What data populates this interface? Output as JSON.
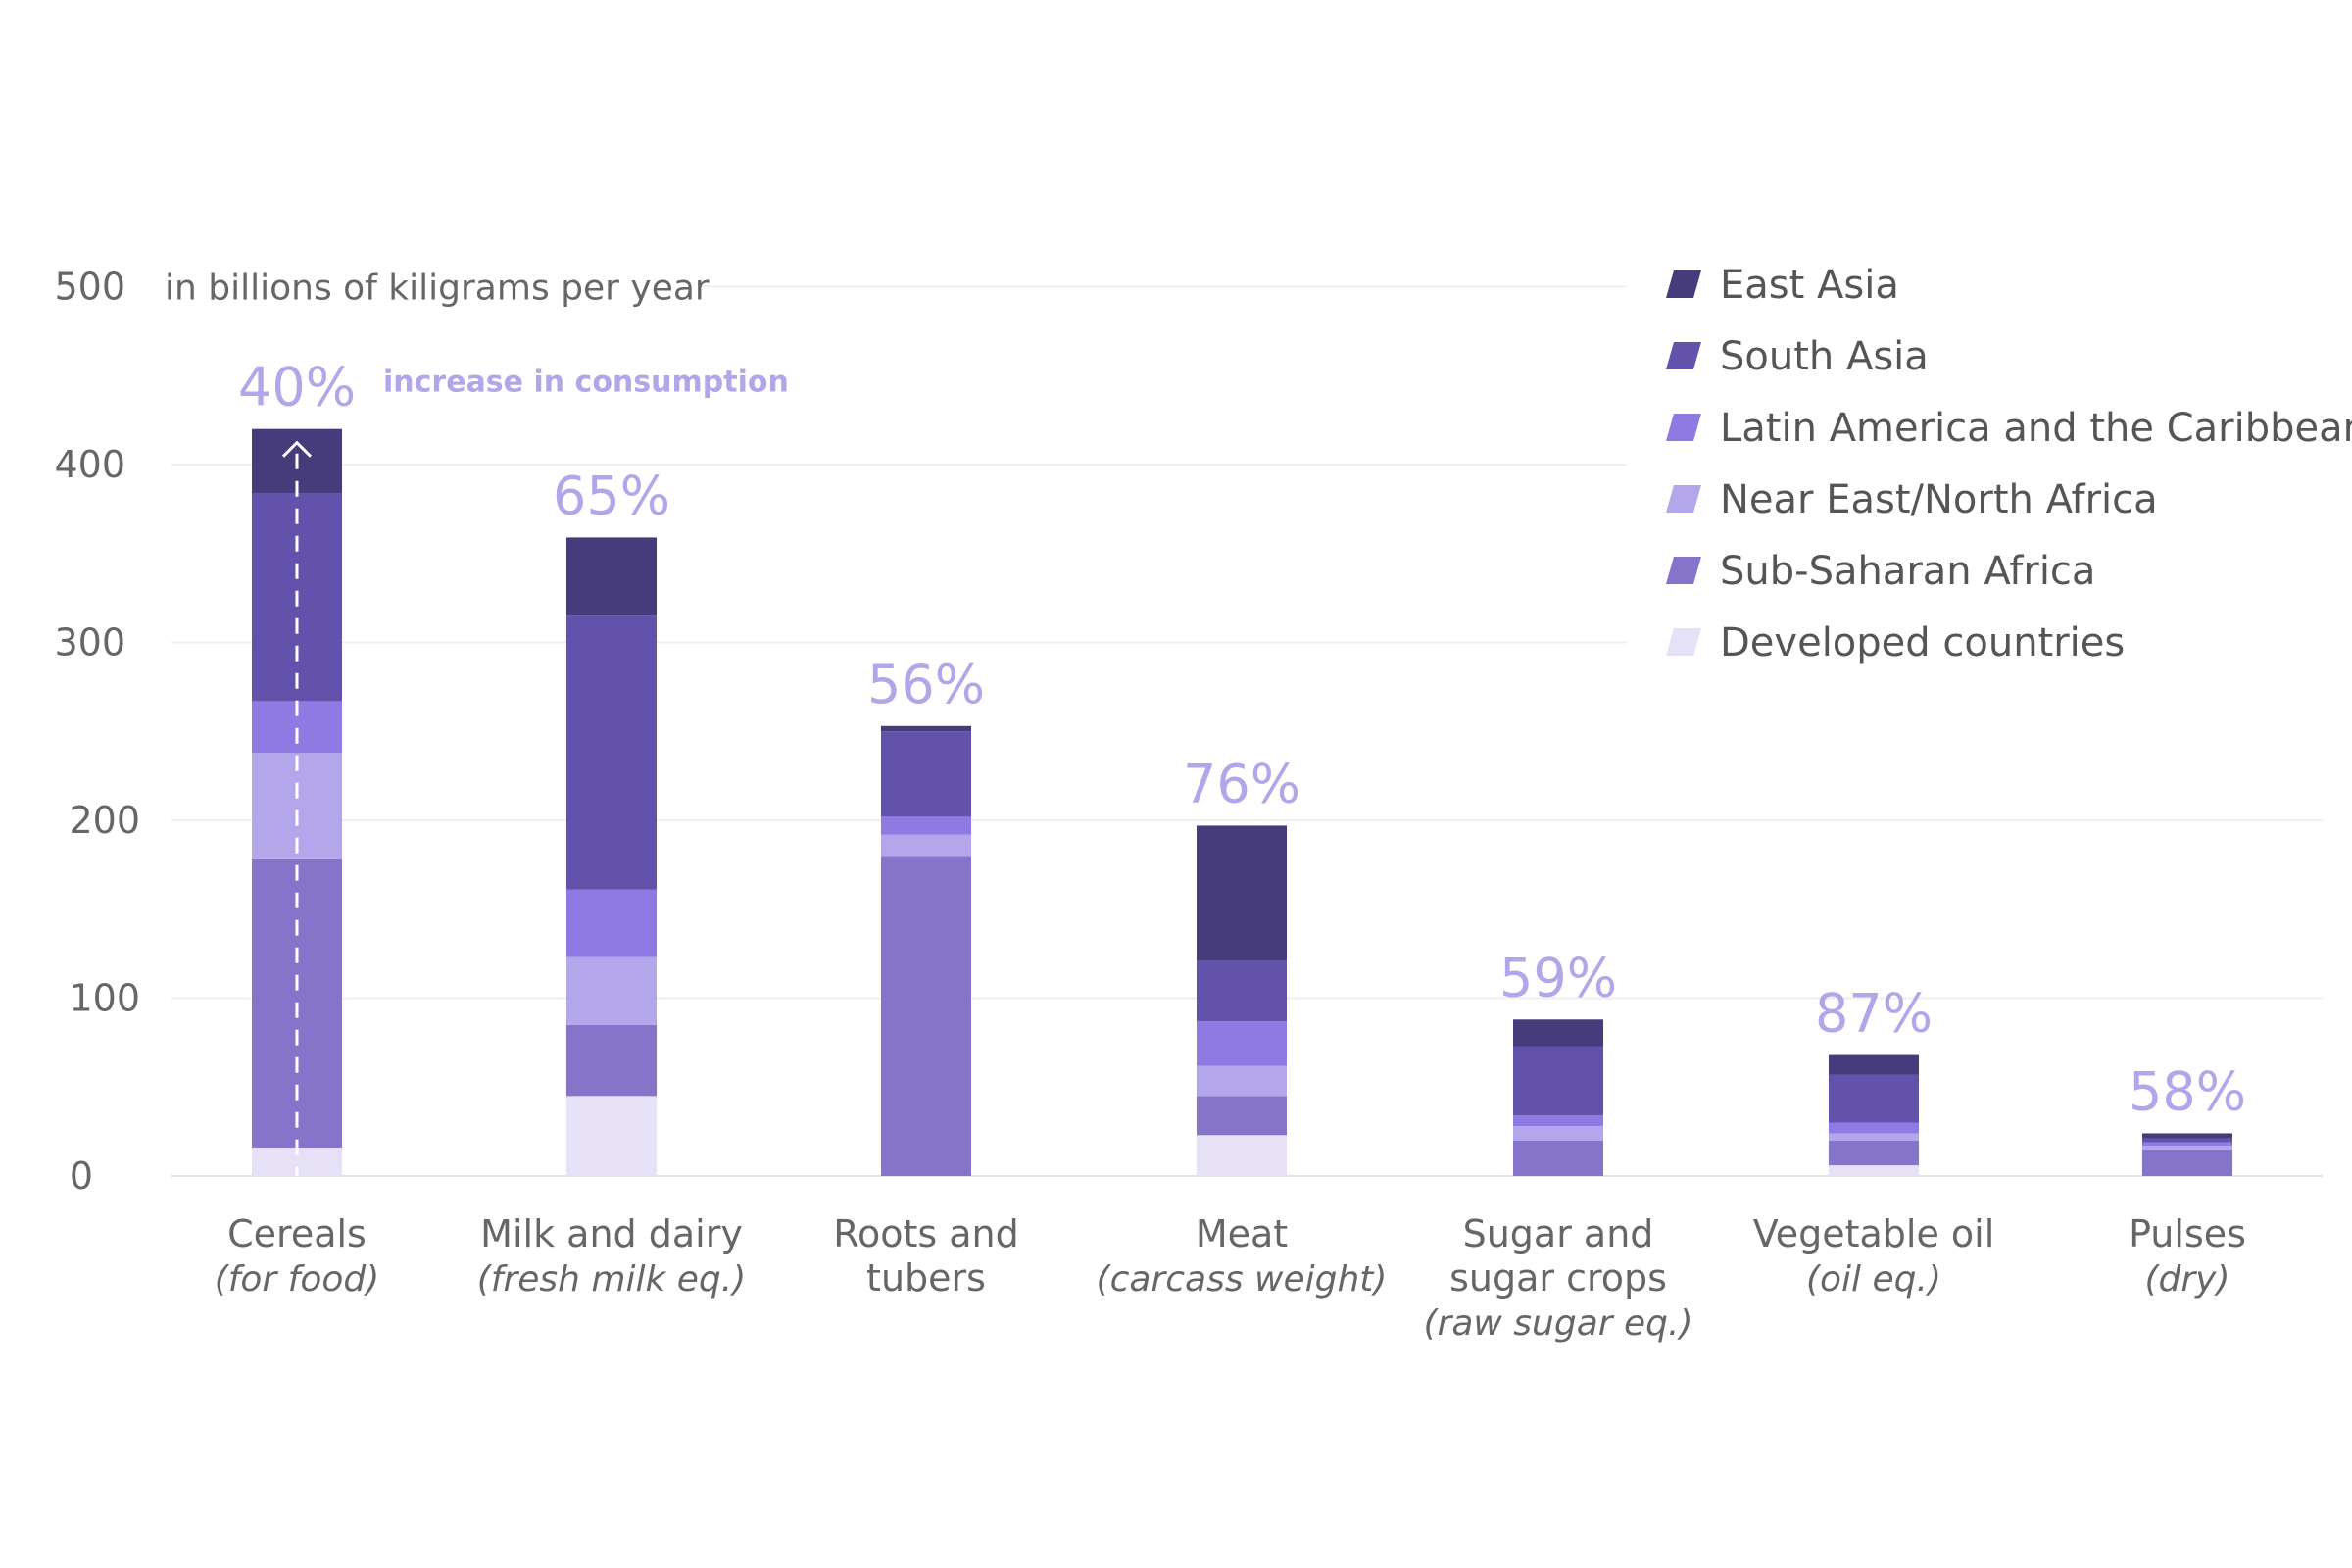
{
  "chart_data": {
    "type": "bar",
    "stacked": true,
    "unit_label": "in billions of kiligrams per year",
    "annotation": "increase in consumption",
    "ylim": [
      0,
      500
    ],
    "yticks": [
      "0",
      "100",
      "200",
      "300",
      "400",
      "500"
    ],
    "grid": true,
    "legend_position": "top-right",
    "categories": [
      {
        "name": "Cereals",
        "sub": "(for food)",
        "pct": "40%"
      },
      {
        "name": "Milk and dairy",
        "sub": "(fresh milk eq.)",
        "pct": "65%"
      },
      {
        "name": "Roots and tubers",
        "sub": "",
        "pct": "56%"
      },
      {
        "name": "Meat",
        "sub": "(carcass weight)",
        "pct": "76%"
      },
      {
        "name": "Sugar and sugar crops",
        "sub": "(raw sugar eq.)",
        "pct": "59%"
      },
      {
        "name": "Vegetable oil",
        "sub": "(oil eq.)",
        "pct": "87%"
      },
      {
        "name": "Pulses",
        "sub": "(dry)",
        "pct": "58%"
      }
    ],
    "series": [
      {
        "name": "Developed countries",
        "color": "#e6e1f7",
        "values": [
          16,
          45,
          0,
          23,
          0,
          6,
          0
        ]
      },
      {
        "name": "Sub-Saharan Africa",
        "color": "#8574c9",
        "values": [
          162,
          40,
          180,
          22,
          20,
          14,
          15
        ]
      },
      {
        "name": "Near East/North Africa",
        "color": "#b4a6ea",
        "values": [
          60,
          38,
          12,
          17,
          8,
          4,
          2
        ]
      },
      {
        "name": "Latin America and the Caribbean",
        "color": "#8f7ae4",
        "values": [
          29,
          38,
          10,
          25,
          6,
          6,
          2
        ]
      },
      {
        "name": "South Asia",
        "color": "#6352ab",
        "values": [
          117,
          154,
          48,
          34,
          39,
          27,
          2
        ]
      },
      {
        "name": "East Asia",
        "color": "#463c7c",
        "values": [
          36,
          44,
          3,
          76,
          15,
          11,
          3
        ]
      }
    ],
    "legend_order": [
      "East Asia",
      "South Asia",
      "Latin America and the Caribbean",
      "Near East/North Africa",
      "Sub-Saharan Africa",
      "Developed countries"
    ]
  }
}
